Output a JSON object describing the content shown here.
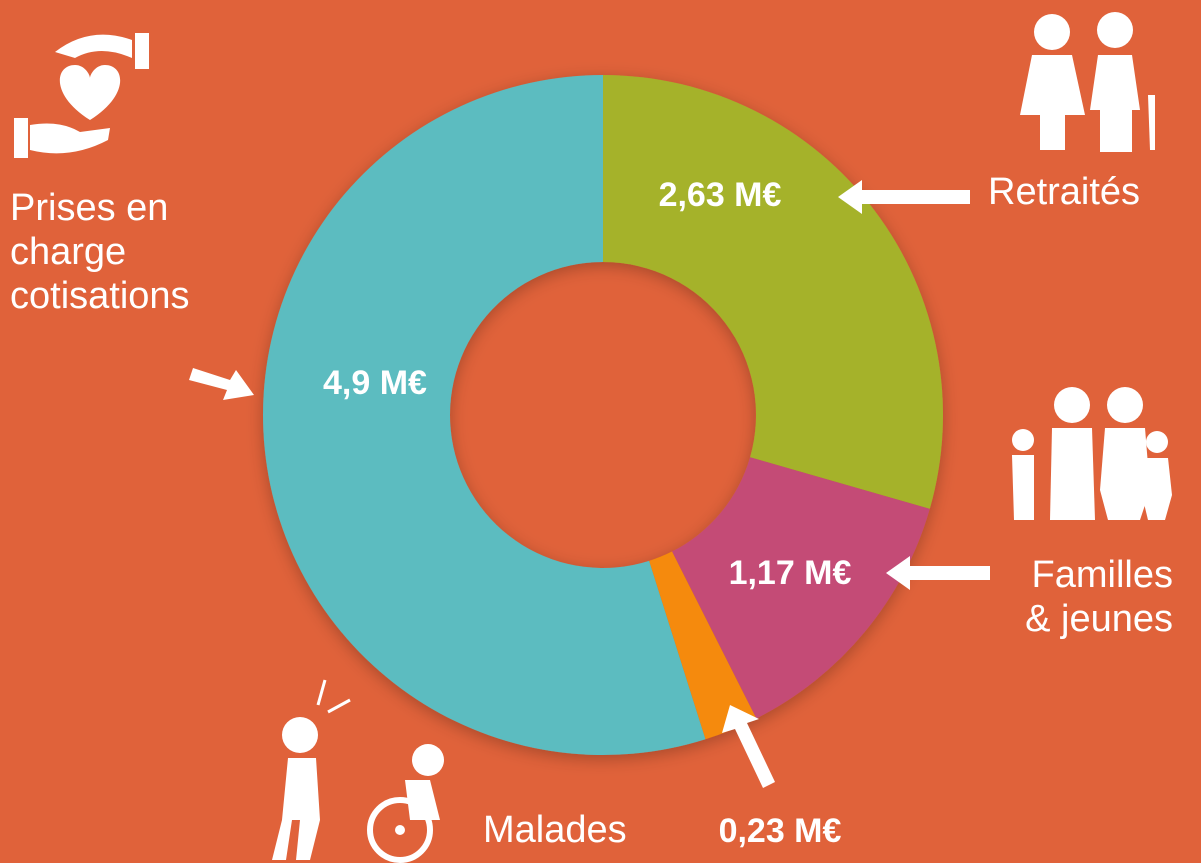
{
  "chart_data": {
    "type": "donut",
    "categories": [
      "Retraités",
      "Familles & jeunes",
      "Malades",
      "Prises en charge cotisations"
    ],
    "values": [
      2.63,
      1.17,
      0.23,
      4.9
    ],
    "value_labels": [
      "2,63 M€",
      "1,17 M€",
      "0,23 M€",
      "4,9 M€"
    ],
    "colors": [
      "#a5b22a",
      "#c44b76",
      "#f58a07",
      "#5bbcc0"
    ]
  }
}
